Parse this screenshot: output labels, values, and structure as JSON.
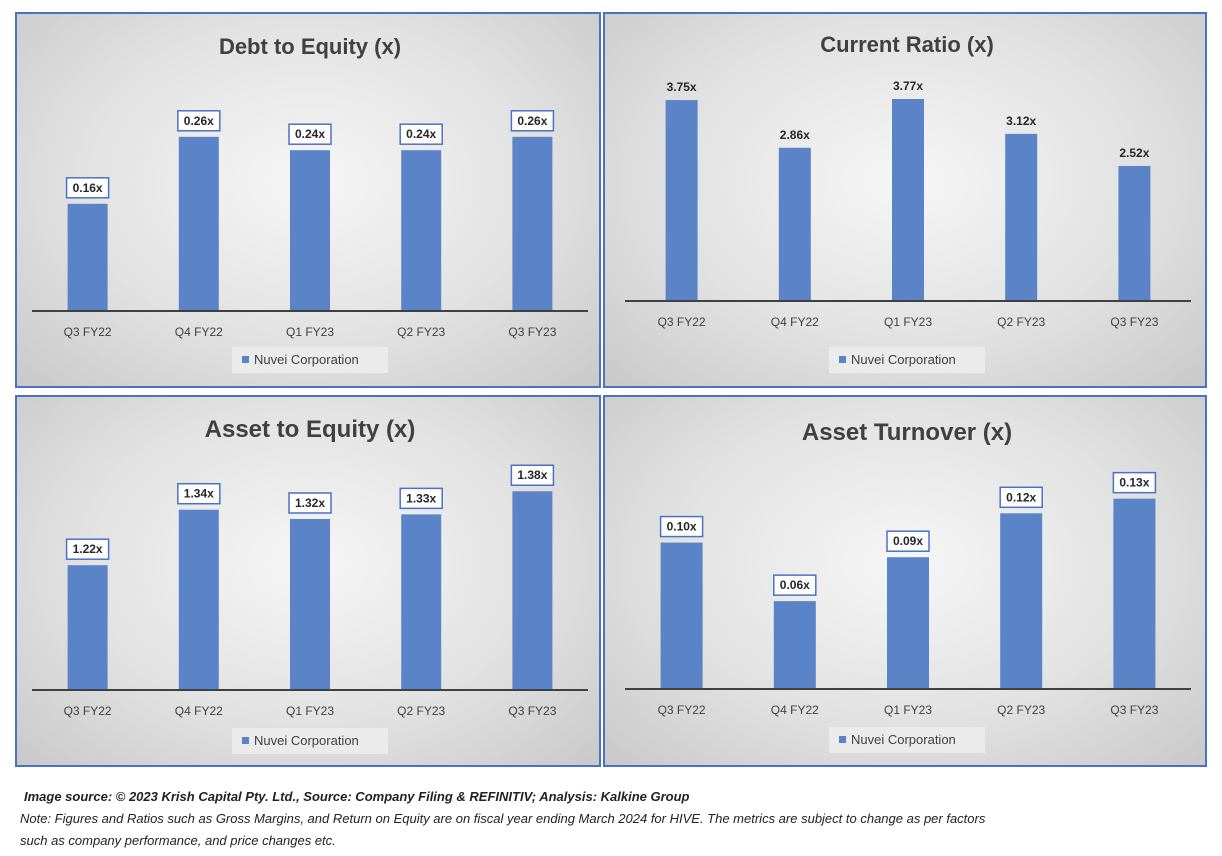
{
  "chart_data": [
    {
      "type": "bar",
      "title": "Debt to Equity (x)",
      "categories": [
        "Q3 FY22",
        "Q4 FY22",
        "Q1 FY23",
        "Q2 FY23",
        "Q3 FY23"
      ],
      "series": [
        {
          "name": "Nuvei Corporation",
          "values": [
            0.16,
            0.26,
            0.24,
            0.24,
            0.26
          ]
        }
      ],
      "value_labels": [
        "0.16x",
        "0.26x",
        "0.24x",
        "0.24x",
        "0.26x"
      ],
      "ylim": [
        0,
        0.3
      ],
      "label_boxed": true,
      "legend": "bottom",
      "grid": false
    },
    {
      "type": "bar",
      "title": "Current Ratio (x)",
      "categories": [
        "Q3 FY22",
        "Q4 FY22",
        "Q1 FY23",
        "Q2 FY23",
        "Q3 FY23"
      ],
      "series": [
        {
          "name": "Nuvei Corporation",
          "values": [
            3.75,
            2.86,
            3.77,
            3.12,
            2.52
          ]
        }
      ],
      "value_labels": [
        "3.75x",
        "2.86x",
        "3.77x",
        "3.12x",
        "2.52x"
      ],
      "ylim": [
        0,
        3.77
      ],
      "label_boxed": false,
      "legend": "bottom",
      "grid": false
    },
    {
      "type": "bar",
      "title": "Asset to Equity (x)",
      "categories": [
        "Q3 FY22",
        "Q4 FY22",
        "Q1 FY23",
        "Q2 FY23",
        "Q3 FY23"
      ],
      "series": [
        {
          "name": "Nuvei Corporation",
          "values": [
            1.22,
            1.34,
            1.32,
            1.33,
            1.38
          ]
        }
      ],
      "value_labels": [
        "1.22x",
        "1.34x",
        "1.32x",
        "1.33x",
        "1.38x"
      ],
      "ylim": [
        0.95,
        1.4
      ],
      "label_boxed": true,
      "legend": "bottom",
      "grid": false
    },
    {
      "type": "bar",
      "title": "Asset Turnover (x)",
      "categories": [
        "Q3 FY22",
        "Q4 FY22",
        "Q1 FY23",
        "Q2 FY23",
        "Q3 FY23"
      ],
      "series": [
        {
          "name": "Nuvei Corporation",
          "values": [
            0.1,
            0.06,
            0.09,
            0.12,
            0.13
          ]
        }
      ],
      "value_labels": [
        "0.10x",
        "0.06x",
        "0.09x",
        "0.12x",
        "0.13x"
      ],
      "ylim": [
        0,
        0.14
      ],
      "label_boxed": true,
      "legend": "bottom",
      "grid": false
    }
  ],
  "colors": {
    "bar": "#5b84c8",
    "panel_border": "#4a72c4",
    "axis": "#404040",
    "text": "#404040"
  },
  "footer": {
    "source": "Image source: © 2023 Krish Capital Pty. Ltd., Source: Company Filing & REFINITIV; Analysis: Kalkine Group",
    "note_line1": "Note: Figures and Ratios such as  Gross Margins, and Return on Equity are on fiscal year ending  March  2024  for HIVE. The metrics are subject to change as per factors",
    "note_line2": "such as company performance, and price changes etc."
  }
}
